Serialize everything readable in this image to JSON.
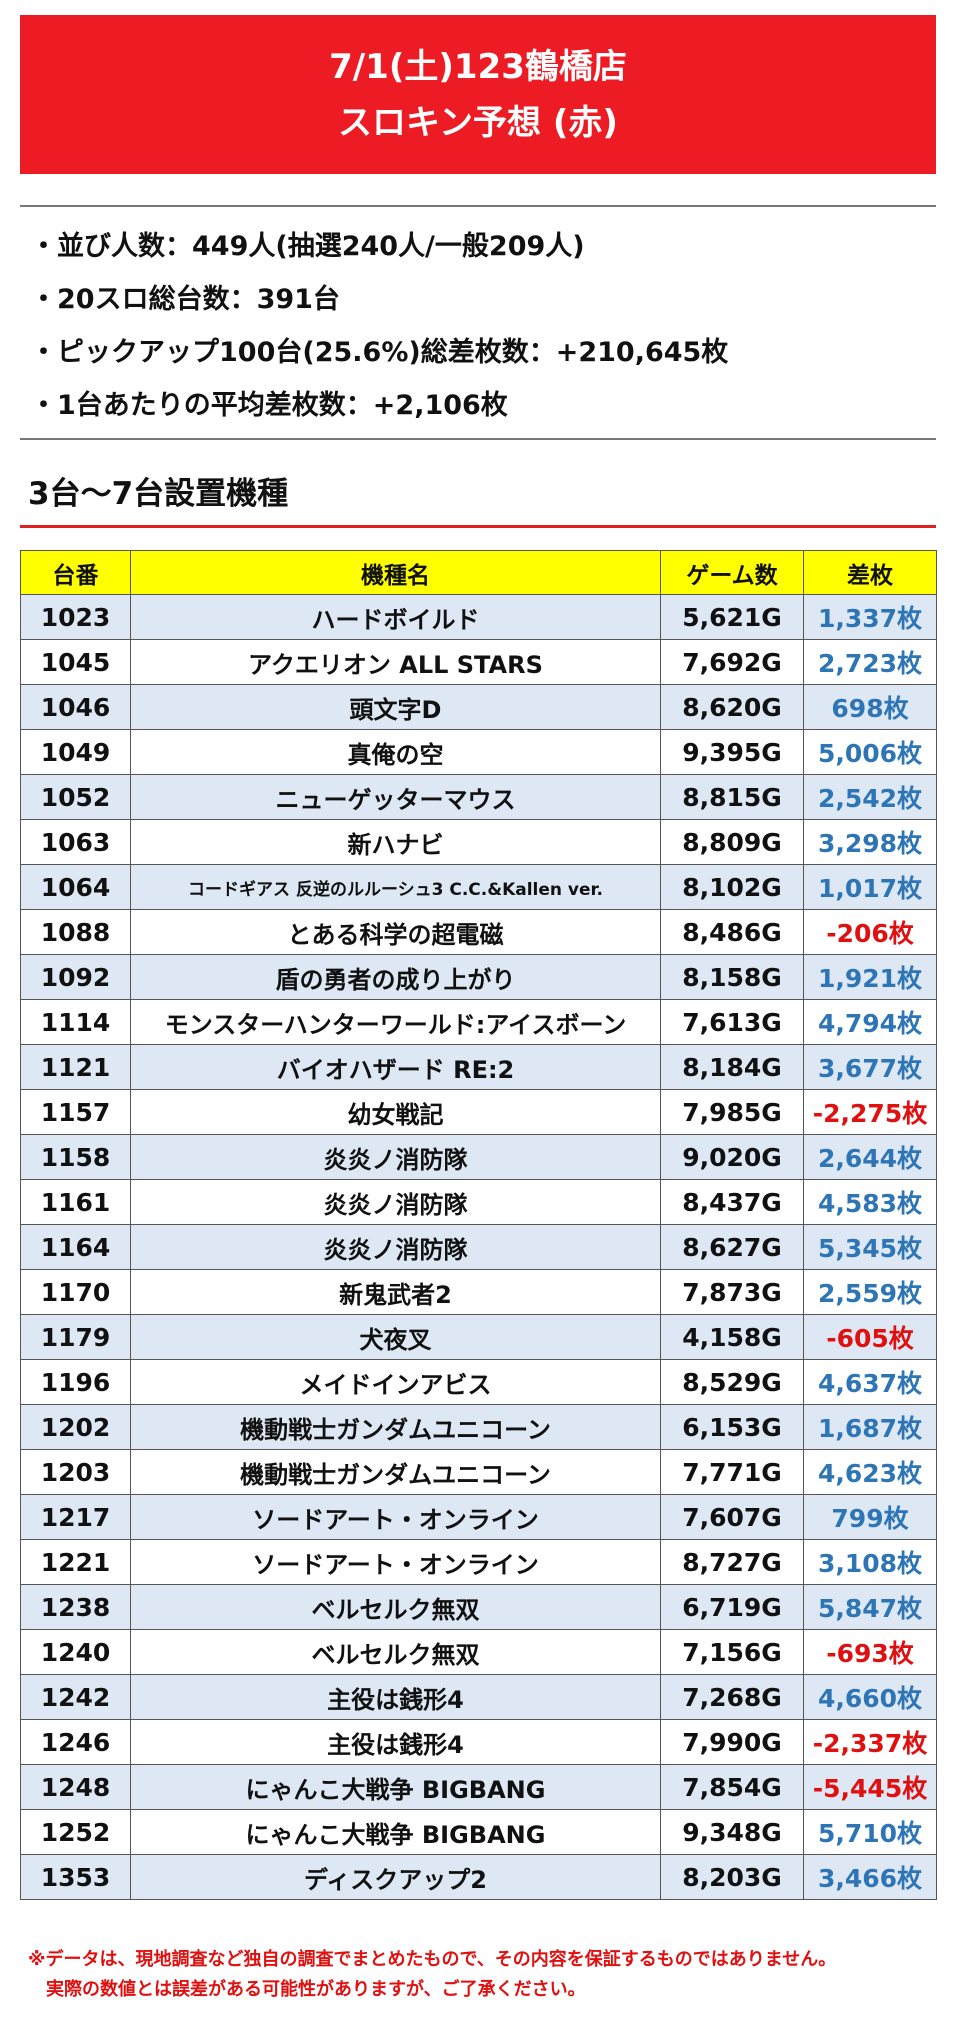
{
  "header": {
    "line1": "7/1(土)123鶴橋店",
    "line2": "スロキン予想 (赤)"
  },
  "stats": [
    "・並び人数：449人(抽選240人/一般209人)",
    "・20スロ総台数：391台",
    "・ピックアップ100台(25.6%)総差枚数：+210,645枚",
    "・1台あたりの平均差枚数：+2,106枚"
  ],
  "section_title": "3台～7台設置機種",
  "table": {
    "columns": [
      "台番",
      "機種名",
      "ゲーム数",
      "差枚"
    ],
    "rows": [
      {
        "no": "1023",
        "name": "ハードボイルド",
        "games": "5,621G",
        "diff": "1,337枚",
        "sign": "pos"
      },
      {
        "no": "1045",
        "name": "アクエリオン ALL STARS",
        "games": "7,692G",
        "diff": "2,723枚",
        "sign": "pos"
      },
      {
        "no": "1046",
        "name": "頭文字D",
        "games": "8,620G",
        "diff": "698枚",
        "sign": "pos"
      },
      {
        "no": "1049",
        "name": "真俺の空",
        "games": "9,395G",
        "diff": "5,006枚",
        "sign": "pos"
      },
      {
        "no": "1052",
        "name": "ニューゲッターマウス",
        "games": "8,815G",
        "diff": "2,542枚",
        "sign": "pos"
      },
      {
        "no": "1063",
        "name": "新ハナビ",
        "games": "8,809G",
        "diff": "3,298枚",
        "sign": "pos"
      },
      {
        "no": "1064",
        "name": "コードギアス 反逆のルルーシュ3 C.C.&Kallen ver.",
        "games": "8,102G",
        "diff": "1,017枚",
        "sign": "pos",
        "small": true
      },
      {
        "no": "1088",
        "name": "とある科学の超電磁",
        "games": "8,486G",
        "diff": "-206枚",
        "sign": "neg"
      },
      {
        "no": "1092",
        "name": "盾の勇者の成り上がり",
        "games": "8,158G",
        "diff": "1,921枚",
        "sign": "pos"
      },
      {
        "no": "1114",
        "name": "モンスターハンターワールド:アイスボーン",
        "games": "7,613G",
        "diff": "4,794枚",
        "sign": "pos"
      },
      {
        "no": "1121",
        "name": "バイオハザード RE:2",
        "games": "8,184G",
        "diff": "3,677枚",
        "sign": "pos"
      },
      {
        "no": "1157",
        "name": "幼女戦記",
        "games": "7,985G",
        "diff": "-2,275枚",
        "sign": "neg"
      },
      {
        "no": "1158",
        "name": "炎炎ノ消防隊",
        "games": "9,020G",
        "diff": "2,644枚",
        "sign": "pos"
      },
      {
        "no": "1161",
        "name": "炎炎ノ消防隊",
        "games": "8,437G",
        "diff": "4,583枚",
        "sign": "pos"
      },
      {
        "no": "1164",
        "name": "炎炎ノ消防隊",
        "games": "8,627G",
        "diff": "5,345枚",
        "sign": "pos"
      },
      {
        "no": "1170",
        "name": "新鬼武者2",
        "games": "7,873G",
        "diff": "2,559枚",
        "sign": "pos"
      },
      {
        "no": "1179",
        "name": "犬夜叉",
        "games": "4,158G",
        "diff": "-605枚",
        "sign": "neg"
      },
      {
        "no": "1196",
        "name": "メイドインアビス",
        "games": "8,529G",
        "diff": "4,637枚",
        "sign": "pos"
      },
      {
        "no": "1202",
        "name": "機動戦士ガンダムユニコーン",
        "games": "6,153G",
        "diff": "1,687枚",
        "sign": "pos"
      },
      {
        "no": "1203",
        "name": "機動戦士ガンダムユニコーン",
        "games": "7,771G",
        "diff": "4,623枚",
        "sign": "pos"
      },
      {
        "no": "1217",
        "name": "ソードアート・オンライン",
        "games": "7,607G",
        "diff": "799枚",
        "sign": "pos"
      },
      {
        "no": "1221",
        "name": "ソードアート・オンライン",
        "games": "8,727G",
        "diff": "3,108枚",
        "sign": "pos"
      },
      {
        "no": "1238",
        "name": "ベルセルク無双",
        "games": "6,719G",
        "diff": "5,847枚",
        "sign": "pos"
      },
      {
        "no": "1240",
        "name": "ベルセルク無双",
        "games": "7,156G",
        "diff": "-693枚",
        "sign": "neg"
      },
      {
        "no": "1242",
        "name": "主役は銭形4",
        "games": "7,268G",
        "diff": "4,660枚",
        "sign": "pos"
      },
      {
        "no": "1246",
        "name": "主役は銭形4",
        "games": "7,990G",
        "diff": "-2,337枚",
        "sign": "neg"
      },
      {
        "no": "1248",
        "name": "にゃんこ大戦争 BIGBANG",
        "games": "7,854G",
        "diff": "-5,445枚",
        "sign": "neg"
      },
      {
        "no": "1252",
        "name": "にゃんこ大戦争 BIGBANG",
        "games": "9,348G",
        "diff": "5,710枚",
        "sign": "pos"
      },
      {
        "no": "1353",
        "name": "ディスクアップ2",
        "games": "8,203G",
        "diff": "3,466枚",
        "sign": "pos"
      }
    ]
  },
  "notes": {
    "line1": "※データは、現地調査など独自の調査でまとめたもので、その内容を保証するものではありません。",
    "line2": "実際の数値とは誤差がある可能性がありますが、ご了承ください。"
  },
  "colors": {
    "banner": "#ed1c24",
    "header_row": "#ffff00",
    "alt_row": "#dde8f4",
    "positive": "#2e75b6",
    "negative": "#e01010"
  }
}
